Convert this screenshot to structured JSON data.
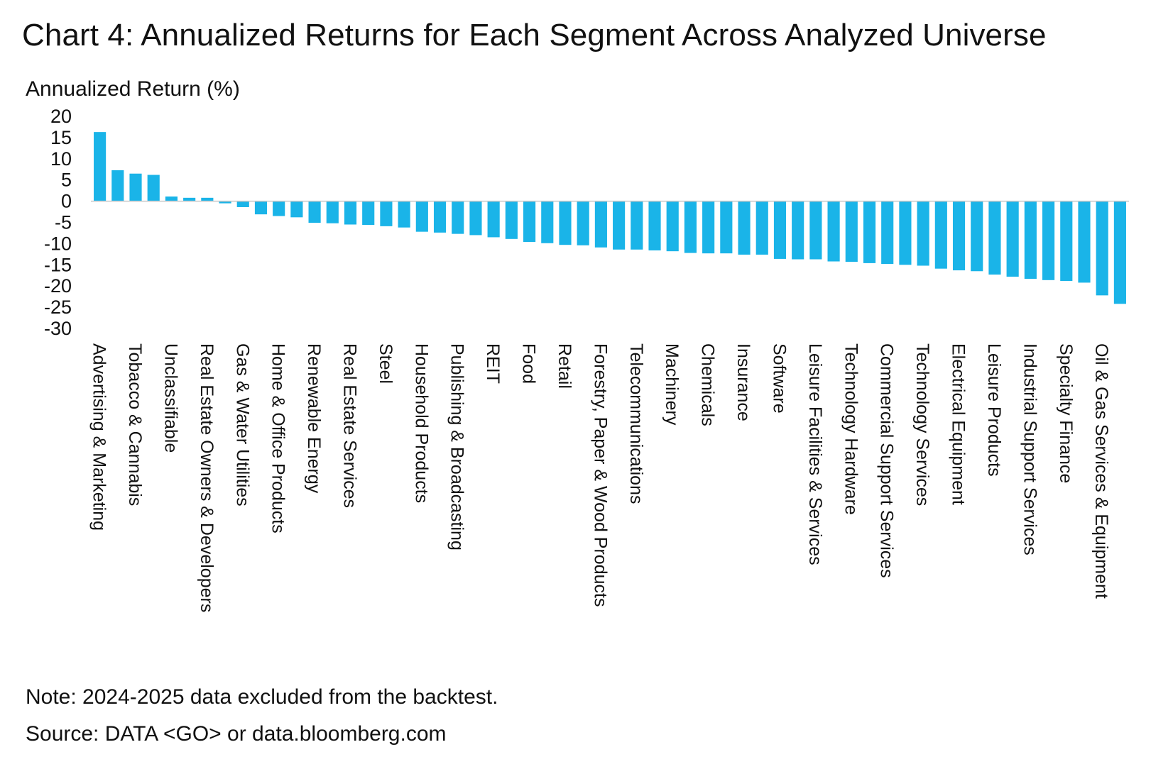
{
  "page": {
    "title": "Chart 4: Annualized Returns for Each Segment Across Analyzed Universe",
    "note": "Note: 2024-2025 data excluded from the backtest.",
    "source": "Source: DATA <GO> or data.bloomberg.com"
  },
  "chart_data": {
    "type": "bar",
    "title": "Chart 4: Annualized Returns for Each Segment Across Analyzed Universe",
    "ylabel": "Annualized Return (%)",
    "xlabel": "",
    "ylim": [
      -30,
      20
    ],
    "yticks": [
      20,
      15,
      10,
      5,
      0,
      -5,
      -10,
      -15,
      -20,
      -25,
      -30
    ],
    "grid": false,
    "legend": "none",
    "bar_color": "#1ab4e8",
    "categories": [
      "Advertising & Marketing",
      "",
      "Tobacco & Cannabis",
      "",
      "Unclassifiable",
      "",
      "Real Estate Owners & Developers",
      "",
      "Gas & Water Utilities",
      "",
      "Home & Office Products",
      "",
      "Renewable Energy",
      "",
      "Real Estate Services",
      "",
      "Steel",
      "",
      "Household Products",
      "",
      "Publishing & Broadcasting",
      "",
      "REIT",
      "",
      "Food",
      "",
      "Retail",
      "",
      "Forestry, Paper & Wood Products",
      "",
      "Telecommunications",
      "",
      "Machinery",
      "",
      "Chemicals",
      "",
      "Insurance",
      "",
      "Software",
      "",
      "Leisure Facilities & Services",
      "",
      "Technology Hardware",
      "",
      "Commercial Support Services",
      "",
      "Technology Services",
      "",
      "Electrical Equipment",
      "",
      "Leisure Products",
      "",
      "Industrial Support Services",
      "",
      "Specialty Finance",
      "",
      "Oil & Gas Services & Equipment",
      ""
    ],
    "values": [
      16.3,
      7.3,
      6.5,
      6.2,
      1.1,
      0.8,
      0.8,
      -0.5,
      -1.4,
      -3.1,
      -3.5,
      -3.8,
      -5.1,
      -5.2,
      -5.5,
      -5.6,
      -5.9,
      -6.2,
      -7.2,
      -7.4,
      -7.7,
      -8.0,
      -8.5,
      -8.9,
      -9.6,
      -9.9,
      -10.3,
      -10.4,
      -10.9,
      -11.4,
      -11.4,
      -11.6,
      -11.8,
      -12.2,
      -12.3,
      -12.3,
      -12.6,
      -12.6,
      -13.6,
      -13.7,
      -13.7,
      -14.2,
      -14.3,
      -14.6,
      -14.8,
      -15.0,
      -15.2,
      -15.9,
      -16.3,
      -16.5,
      -17.3,
      -17.8,
      -18.3,
      -18.6,
      -18.8,
      -19.2,
      -22.2,
      -24.2
    ]
  }
}
